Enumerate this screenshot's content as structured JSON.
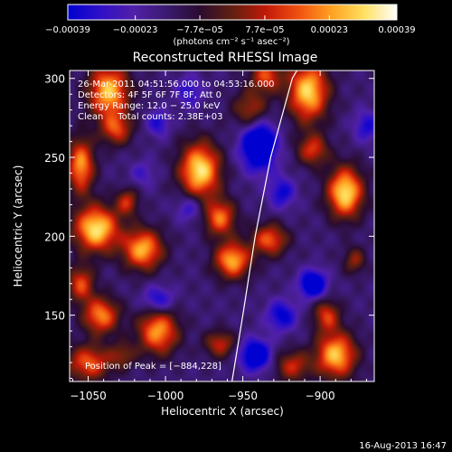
{
  "chart_data": {
    "type": "heatmap",
    "title": "Reconstructed RHESSI Image",
    "xlabel": "Heliocentric X (arcsec)",
    "ylabel": "Heliocentric Y (arcsec)",
    "xlim": [
      -1062,
      -865
    ],
    "ylim": [
      108,
      305
    ],
    "xticks": [
      -1050,
      -1000,
      -950,
      -900
    ],
    "yticks": [
      150,
      200,
      250,
      300
    ],
    "xtick_labels": [
      "−1050",
      "−1000",
      "−950",
      "−900"
    ],
    "ytick_labels": [
      "150",
      "200",
      "250",
      "300"
    ],
    "colorbar": {
      "min": -0.00039,
      "max": 0.00039,
      "tick_values": [
        -0.00039,
        -0.00023,
        -7.7e-05,
        7.7e-05,
        0.00023,
        0.00039
      ],
      "tick_labels": [
        "−0.00039",
        "−0.00023",
        "−7.7e−05",
        "7.7e−05",
        "0.00023",
        "0.00039"
      ],
      "units_label": "(photons cm⁻² s⁻¹ asec⁻²)",
      "colors": [
        "#0000d0",
        "#3010c8",
        "#5020a8",
        "#3a1a70",
        "#2a0c30",
        "#602010",
        "#c01808",
        "#f05010",
        "#ffa020",
        "#ffe060",
        "#ffffff"
      ]
    },
    "info_lines": [
      "26-Mar-2011 04:51:56.000 to 04:53:16.000",
      "Detectors: 4F 5F 6F 7F 8F, Att 0",
      "Energy Range: 12.0 − 25.0 keV",
      "Clean     Total counts: 2.38E+03"
    ],
    "peak_label": "Position of Peak = [−884,228]",
    "peak_position": [
      -884,
      228
    ],
    "limb_curve": [
      [
        -957,
        108
      ],
      [
        -950,
        150
      ],
      [
        -942,
        200
      ],
      [
        -932,
        250
      ],
      [
        -918,
        300
      ],
      [
        -915,
        305
      ]
    ],
    "blobs": [
      {
        "x": -1037,
        "y": 292,
        "sx": 9,
        "sy": 12,
        "v": 0.9
      },
      {
        "x": -1032,
        "y": 268,
        "sx": 7,
        "sy": 7,
        "v": 0.55
      },
      {
        "x": -1055,
        "y": 245,
        "sx": 6,
        "sy": 12,
        "v": 0.8
      },
      {
        "x": -1045,
        "y": 205,
        "sx": 10,
        "sy": 10,
        "v": 1.0
      },
      {
        "x": -1015,
        "y": 192,
        "sx": 9,
        "sy": 9,
        "v": 0.85
      },
      {
        "x": -1025,
        "y": 222,
        "sx": 5,
        "sy": 6,
        "v": 0.5
      },
      {
        "x": -1055,
        "y": 170,
        "sx": 6,
        "sy": 8,
        "v": 0.6
      },
      {
        "x": -1042,
        "y": 150,
        "sx": 8,
        "sy": 8,
        "v": 0.75
      },
      {
        "x": -1005,
        "y": 140,
        "sx": 9,
        "sy": 10,
        "v": 0.8
      },
      {
        "x": -1050,
        "y": 120,
        "sx": 10,
        "sy": 8,
        "v": 0.65
      },
      {
        "x": -1028,
        "y": 125,
        "sx": 6,
        "sy": 6,
        "v": 0.35
      },
      {
        "x": -978,
        "y": 242,
        "sx": 9,
        "sy": 12,
        "v": 1.0
      },
      {
        "x": -965,
        "y": 212,
        "sx": 7,
        "sy": 8,
        "v": 0.7
      },
      {
        "x": -957,
        "y": 185,
        "sx": 8,
        "sy": 8,
        "v": 0.85
      },
      {
        "x": -933,
        "y": 198,
        "sx": 8,
        "sy": 7,
        "v": 0.65
      },
      {
        "x": -945,
        "y": 280,
        "sx": 8,
        "sy": 9,
        "v": 0.5
      },
      {
        "x": -935,
        "y": 302,
        "sx": 7,
        "sy": 7,
        "v": 0.6
      },
      {
        "x": -908,
        "y": 292,
        "sx": 9,
        "sy": 13,
        "v": 0.95
      },
      {
        "x": -905,
        "y": 255,
        "sx": 7,
        "sy": 7,
        "v": 0.55
      },
      {
        "x": -884,
        "y": 228,
        "sx": 8,
        "sy": 11,
        "v": 1.0
      },
      {
        "x": -878,
        "y": 185,
        "sx": 5,
        "sy": 6,
        "v": 0.4
      },
      {
        "x": -896,
        "y": 150,
        "sx": 6,
        "sy": 7,
        "v": 0.55
      },
      {
        "x": -890,
        "y": 125,
        "sx": 9,
        "sy": 10,
        "v": 0.9
      },
      {
        "x": -918,
        "y": 118,
        "sx": 8,
        "sy": 7,
        "v": 0.5
      },
      {
        "x": -965,
        "y": 132,
        "sx": 7,
        "sy": 6,
        "v": 0.5
      },
      {
        "x": -1005,
        "y": 272,
        "sx": 5,
        "sy": 6,
        "v": -0.4
      },
      {
        "x": -985,
        "y": 292,
        "sx": 6,
        "sy": 7,
        "v": -0.35
      },
      {
        "x": -940,
        "y": 258,
        "sx": 8,
        "sy": 11,
        "v": -0.9
      },
      {
        "x": -925,
        "y": 228,
        "sx": 6,
        "sy": 7,
        "v": -0.45
      },
      {
        "x": -905,
        "y": 170,
        "sx": 6,
        "sy": 6,
        "v": -0.8
      },
      {
        "x": -925,
        "y": 150,
        "sx": 7,
        "sy": 7,
        "v": -0.5
      },
      {
        "x": -942,
        "y": 125,
        "sx": 7,
        "sy": 7,
        "v": -0.75
      },
      {
        "x": -1005,
        "y": 160,
        "sx": 7,
        "sy": 6,
        "v": -0.45
      },
      {
        "x": -985,
        "y": 218,
        "sx": 6,
        "sy": 6,
        "v": -0.35
      },
      {
        "x": -1015,
        "y": 240,
        "sx": 6,
        "sy": 6,
        "v": -0.25
      },
      {
        "x": -870,
        "y": 270,
        "sx": 6,
        "sy": 7,
        "v": -0.4
      }
    ]
  },
  "footer": {
    "timestamp": "16-Aug-2013 16:47"
  }
}
